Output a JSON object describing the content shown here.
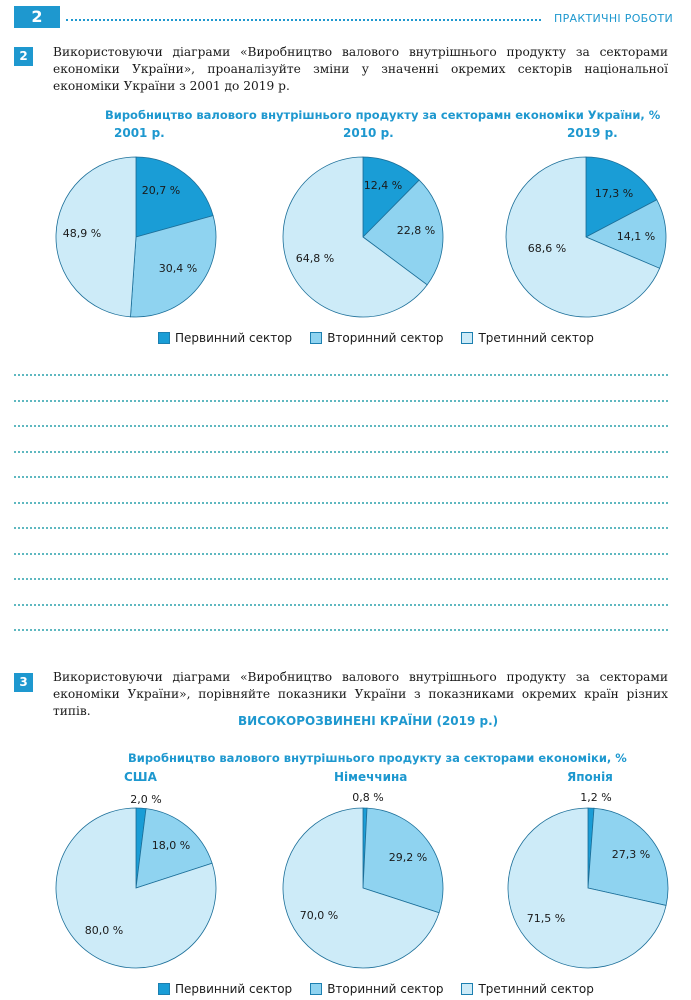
{
  "header": {
    "page_number": "2",
    "section_title": "ПРАКТИЧНІ РОБОТИ"
  },
  "task2": {
    "number": "2",
    "text": "Використовуючи діаграми «Виробництво валового внутрішнього продукту за секторами економіки України», проаналізуйте зміни у значенні окремих секторів національної економіки України з 2001 до 2019 р.",
    "chart_title": "Виробництво валового внутрішнього продукту за секторамн економіки України, %"
  },
  "task3": {
    "number": "3",
    "text": "Використовуючи діаграми «Виробництво валового внутрішнього продукту за секторами економіки України», порівняйте показники України з показниками окремих країн різних типів.",
    "block_title": "ВИСОКОРОЗВИНЕНІ КРАЇНИ (2019 р.)",
    "chart_title": "Виробництво валового внутрішнього продукту за секторами економіки, %"
  },
  "legend": [
    "Первинний сектор",
    "Вторинний сектор",
    "Третинний сектор"
  ],
  "colors": {
    "primary": "#1a9dd6",
    "secondary": "#8fd3f0",
    "tertiary": "#cdebf8",
    "accent": "#1e98cf"
  },
  "chart_data": [
    {
      "type": "pie",
      "title": "2001 р.",
      "categories": [
        "Первинний сектор",
        "Вторинний сектор",
        "Третинний сектор"
      ],
      "values": [
        20.7,
        30.4,
        48.9
      ],
      "labels": [
        "20,7 %",
        "30,4 %",
        "48,9 %"
      ]
    },
    {
      "type": "pie",
      "title": "2010 р.",
      "categories": [
        "Первинний сектор",
        "Вторинний сектор",
        "Третинний сектор"
      ],
      "values": [
        12.4,
        22.8,
        64.8
      ],
      "labels": [
        "12,4 %",
        "22,8 %",
        "64,8 %"
      ]
    },
    {
      "type": "pie",
      "title": "2019 р.",
      "categories": [
        "Первинний сектор",
        "Вторинний сектор",
        "Третинний сектор"
      ],
      "values": [
        17.3,
        14.1,
        68.6
      ],
      "labels": [
        "17,3 %",
        "14,1 %",
        "68,6 %"
      ]
    },
    {
      "type": "pie",
      "title": "США",
      "categories": [
        "Первинний сектор",
        "Вторинний сектор",
        "Третинний сектор"
      ],
      "values": [
        2.0,
        18.0,
        80.0
      ],
      "labels": [
        "2,0 %",
        "18,0 %",
        "80,0 %"
      ]
    },
    {
      "type": "pie",
      "title": "Німеччина",
      "categories": [
        "Первинний сектор",
        "Вторинний сектор",
        "Третинний сектор"
      ],
      "values": [
        0.8,
        29.2,
        70.0
      ],
      "labels": [
        "0,8 %",
        "29,2 %",
        "70,0 %"
      ]
    },
    {
      "type": "pie",
      "title": "Японія",
      "categories": [
        "Первинний сектор",
        "Вторинний сектор",
        "Третинний сектор"
      ],
      "values": [
        1.2,
        27.3,
        71.5
      ],
      "labels": [
        "1,2 %",
        "27,3 %",
        "71,5 %"
      ]
    }
  ]
}
